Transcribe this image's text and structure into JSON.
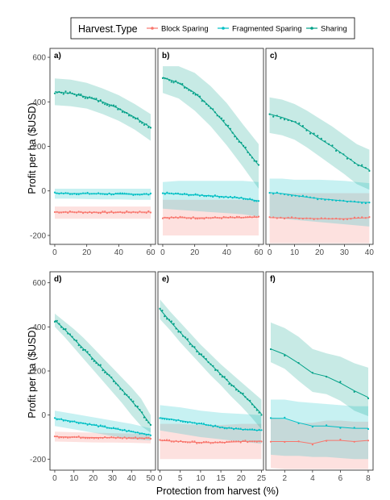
{
  "chart_data": {
    "type": "line",
    "legend": {
      "title": "Harvest.Type",
      "position": "top",
      "entries": [
        {
          "name": "Block Sparing",
          "color": "#F8766D"
        },
        {
          "name": "Fragmented Sparing",
          "color": "#00BFC4"
        },
        {
          "name": "Sharing",
          "color": "#00A087"
        }
      ]
    },
    "xlabel": "Protection from harvest (%)",
    "ylabel": "Profit per ha ($USD)",
    "row_ylim": [
      [
        -240,
        640
      ],
      [
        -250,
        650
      ]
    ],
    "yticks": [
      -200,
      0,
      200,
      400,
      600
    ],
    "panels": [
      {
        "label": "a)",
        "xlim": [
          -3,
          63
        ],
        "xticks": [
          0,
          20,
          40,
          60
        ],
        "series": [
          {
            "name": "Sharing",
            "x": [
              0,
              10,
              20,
              30,
              40,
              50,
              60
            ],
            "y": [
              445,
              438,
              422,
              400,
              370,
              330,
              285
            ],
            "lower": [
              385,
              380,
              370,
              345,
              315,
              275,
              225
            ],
            "upper": [
              505,
              500,
              485,
              460,
              430,
              390,
              345
            ]
          },
          {
            "name": "Fragmented Sparing",
            "x": [
              0,
              10,
              20,
              30,
              40,
              50,
              60
            ],
            "y": [
              -10,
              -12,
              -12,
              -13,
              -14,
              -15,
              -15
            ],
            "lower": [
              -35,
              -35,
              -37,
              -38,
              -38,
              -40,
              -40
            ],
            "upper": [
              10,
              10,
              10,
              10,
              10,
              10,
              10
            ]
          },
          {
            "name": "Block Sparing",
            "x": [
              0,
              10,
              20,
              30,
              40,
              50,
              60
            ],
            "y": [
              -95,
              -95,
              -96,
              -96,
              -96,
              -95,
              -95
            ],
            "lower": [
              -125,
              -125,
              -125,
              -125,
              -125,
              -125,
              -125
            ],
            "upper": [
              -70,
              -70,
              -70,
              -70,
              -70,
              -70,
              -70
            ]
          }
        ]
      },
      {
        "label": "b)",
        "xlim": [
          -3,
          63
        ],
        "xticks": [
          0,
          20,
          40,
          60
        ],
        "series": [
          {
            "name": "Sharing",
            "x": [
              0,
              10,
              20,
              30,
              40,
              50,
              55,
              60
            ],
            "y": [
              510,
              485,
              440,
              375,
              295,
              205,
              160,
              115
            ],
            "lower": [
              440,
              415,
              360,
              290,
              205,
              110,
              60,
              10
            ],
            "upper": [
              560,
              560,
              530,
              470,
              395,
              300,
              255,
              210
            ]
          },
          {
            "name": "Fragmented Sparing",
            "x": [
              0,
              10,
              20,
              30,
              40,
              50,
              60
            ],
            "y": [
              -10,
              -14,
              -18,
              -22,
              -27,
              -33,
              -45
            ],
            "lower": [
              -80,
              -85,
              -90,
              -95,
              -100,
              -105,
              -115
            ],
            "upper": [
              40,
              45,
              45,
              45,
              45,
              45,
              40
            ]
          },
          {
            "name": "Block Sparing",
            "x": [
              0,
              10,
              20,
              30,
              40,
              50,
              60
            ],
            "y": [
              -120,
              -120,
              -121,
              -121,
              -120,
              -120,
              -118
            ],
            "lower": [
              -200,
              -200,
              -200,
              -200,
              -200,
              -200,
              -200
            ],
            "upper": [
              -40,
              -40,
              -40,
              -40,
              -40,
              -40,
              -40
            ]
          }
        ]
      },
      {
        "label": "c)",
        "xlim": [
          -1.5,
          41.5
        ],
        "xticks": [
          0,
          10,
          20,
          30,
          40
        ],
        "series": [
          {
            "name": "Sharing",
            "x": [
              0,
              5,
              10,
              15,
              20,
              25,
              30,
              35,
              40
            ],
            "y": [
              345,
              330,
              310,
              275,
              235,
              200,
              160,
              120,
              95
            ],
            "lower": [
              260,
              250,
              230,
              195,
              155,
              115,
              75,
              30,
              5
            ],
            "upper": [
              420,
              410,
              390,
              360,
              325,
              290,
              250,
              210,
              185
            ]
          },
          {
            "name": "Fragmented Sparing",
            "x": [
              0,
              5,
              10,
              15,
              20,
              25,
              30,
              35,
              40
            ],
            "y": [
              -8,
              -12,
              -20,
              -28,
              -35,
              -40,
              -45,
              -50,
              -52
            ],
            "lower": [
              -120,
              -125,
              -130,
              -135,
              -140,
              -145,
              -150,
              -155,
              -160
            ],
            "upper": [
              55,
              55,
              50,
              50,
              50,
              48,
              45,
              40,
              35
            ]
          },
          {
            "name": "Block Sparing",
            "x": [
              0,
              10,
              20,
              30,
              40
            ],
            "y": [
              -120,
              -122,
              -125,
              -125,
              -120
            ],
            "lower": [
              -235,
              -235,
              -235,
              -235,
              -235
            ],
            "upper": [
              -10,
              -10,
              -10,
              -10,
              -10
            ]
          }
        ]
      },
      {
        "label": "d)",
        "xlim": [
          -2.5,
          52.5
        ],
        "xticks": [
          0,
          10,
          20,
          30,
          40,
          50
        ],
        "series": [
          {
            "name": "Sharing",
            "x": [
              0,
              5,
              10,
              15,
              20,
              25,
              30,
              35,
              40,
              45,
              50
            ],
            "y": [
              430,
              390,
              345,
              300,
              255,
              210,
              165,
              115,
              65,
              15,
              -45
            ],
            "lower": [
              400,
              355,
              305,
              255,
              205,
              155,
              105,
              55,
              0,
              -50,
              -80
            ],
            "upper": [
              460,
              425,
              390,
              350,
              305,
              260,
              215,
              170,
              125,
              75,
              0
            ]
          },
          {
            "name": "Fragmented Sparing",
            "x": [
              0,
              10,
              20,
              30,
              40,
              50
            ],
            "y": [
              -15,
              -30,
              -45,
              -60,
              -75,
              -90
            ],
            "lower": [
              -50,
              -65,
              -80,
              -95,
              -110,
              -115
            ],
            "upper": [
              20,
              5,
              -10,
              -25,
              -40,
              -60
            ]
          },
          {
            "name": "Block Sparing",
            "x": [
              0,
              10,
              20,
              30,
              40,
              50
            ],
            "y": [
              -98,
              -100,
              -102,
              -103,
              -104,
              -105
            ],
            "lower": [
              -120,
              -122,
              -124,
              -125,
              -126,
              -128
            ],
            "upper": [
              -75,
              -78,
              -80,
              -82,
              -84,
              -86
            ]
          }
        ]
      },
      {
        "label": "e)",
        "xlim": [
          -0.5,
          25.5
        ],
        "xticks": [
          0,
          5,
          10,
          15,
          20,
          25
        ],
        "series": [
          {
            "name": "Sharing",
            "x": [
              0,
              2.5,
              5,
              7.5,
              10,
              12.5,
              15,
              17.5,
              20,
              22.5,
              25
            ],
            "y": [
              480,
              425,
              375,
              325,
              275,
              230,
              185,
              140,
              100,
              55,
              5
            ],
            "lower": [
              435,
              385,
              330,
              280,
              230,
              180,
              135,
              85,
              40,
              -10,
              -65
            ],
            "upper": [
              525,
              470,
              420,
              370,
              320,
              275,
              230,
              190,
              150,
              110,
              70
            ]
          },
          {
            "name": "Fragmented Sparing",
            "x": [
              0,
              5,
              10,
              15,
              20,
              25
            ],
            "y": [
              -12,
              -25,
              -40,
              -55,
              -65,
              -70
            ],
            "lower": [
              -70,
              -85,
              -100,
              -110,
              -120,
              -130
            ],
            "upper": [
              45,
              35,
              20,
              10,
              5,
              0
            ]
          },
          {
            "name": "Block Sparing",
            "x": [
              0,
              5,
              10,
              15,
              20,
              25
            ],
            "y": [
              -115,
              -120,
              -125,
              -125,
              -120,
              -118
            ],
            "lower": [
              -200,
              -200,
              -200,
              -200,
              -200,
              -200
            ],
            "upper": [
              -40,
              -40,
              -45,
              -45,
              -40,
              -40
            ]
          }
        ]
      },
      {
        "label": "f)",
        "xlim": [
          0.65,
          8.35
        ],
        "xticks": [
          2,
          4,
          6,
          8
        ],
        "series": [
          {
            "name": "Sharing",
            "x": [
              1,
              2,
              3,
              4,
              5,
              6,
              7,
              8
            ],
            "y": [
              300,
              275,
              235,
              190,
              175,
              145,
              110,
              80
            ],
            "lower": [
              240,
              210,
              155,
              105,
              95,
              65,
              20,
              -5
            ],
            "upper": [
              420,
              395,
              355,
              300,
              280,
              265,
              235,
              215
            ]
          },
          {
            "name": "Fragmented Sparing",
            "x": [
              1,
              2,
              3,
              4,
              5,
              6,
              7,
              8
            ],
            "y": [
              -15,
              -15,
              -35,
              -50,
              -50,
              -55,
              -60,
              -60
            ],
            "lower": [
              -180,
              -185,
              -185,
              -190,
              -190,
              -195,
              -200,
              -200
            ],
            "upper": [
              70,
              70,
              60,
              55,
              50,
              45,
              40,
              40
            ]
          },
          {
            "name": "Block Sparing",
            "x": [
              1,
              2,
              3,
              4,
              5,
              6,
              7,
              8
            ],
            "y": [
              -120,
              -120,
              -120,
              -130,
              -115,
              -115,
              -120,
              -115
            ],
            "lower": [
              -240,
              -245,
              -245,
              -245,
              -245,
              -245,
              -245,
              -245
            ],
            "upper": [
              -10,
              -20,
              -35,
              -35,
              -25,
              -25,
              -30,
              -30
            ]
          }
        ]
      }
    ]
  }
}
